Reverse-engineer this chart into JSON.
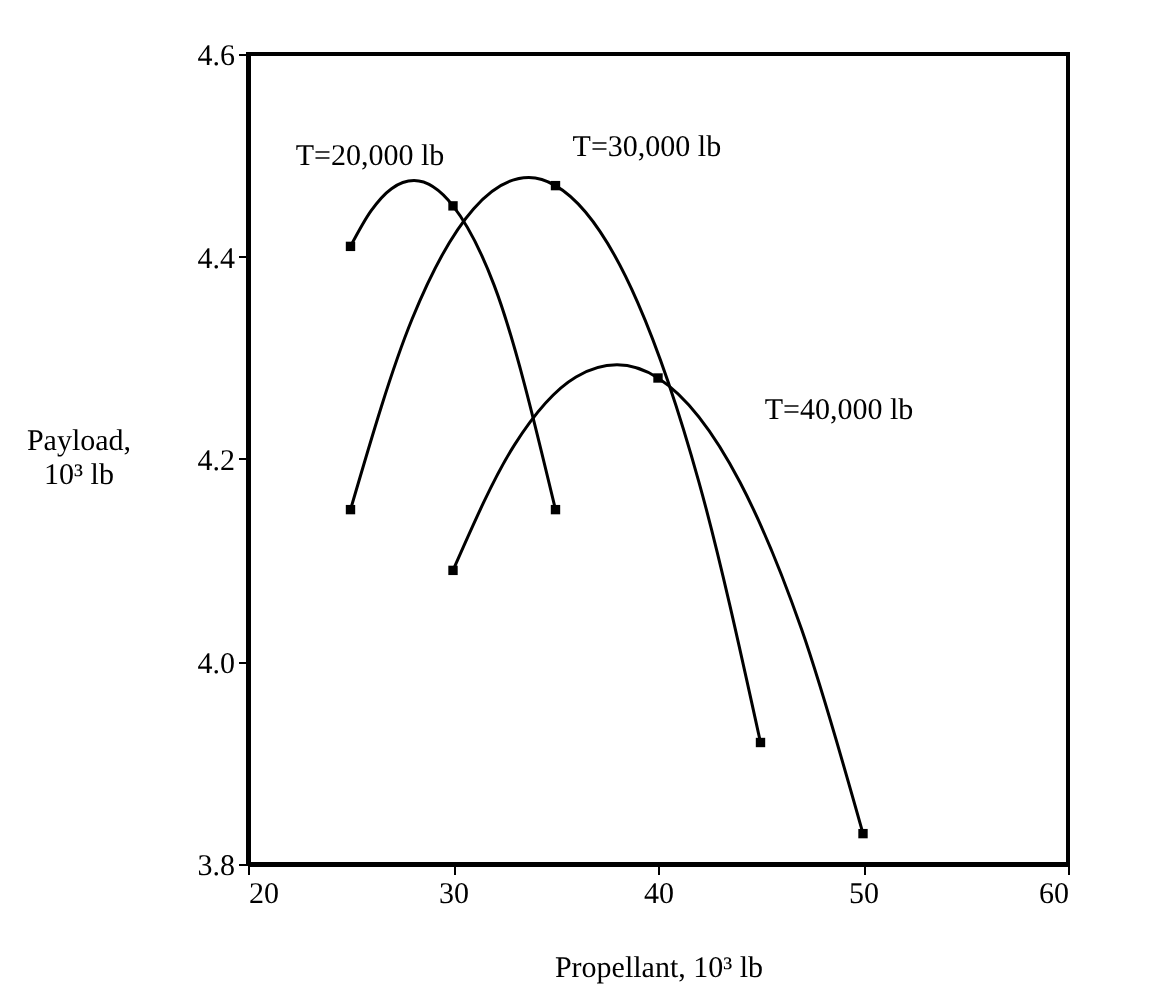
{
  "chart_data": {
    "type": "line",
    "xlabel": "Propellant, 10³ lb",
    "ylabel": "Payload,\n10³ lb",
    "xlim": [
      20,
      60
    ],
    "xticks": [
      20,
      30,
      40,
      50,
      60
    ],
    "ylim": [
      3.8,
      4.6
    ],
    "yticks": [
      3.8,
      {
        "value": 4,
        "label": "4.0"
      },
      4.2,
      4.4,
      4.6
    ],
    "grid": false,
    "line_style": "solid",
    "series": [
      {
        "name": "T=20,000 lb",
        "color": "#000000",
        "x": [
          25,
          26,
          27,
          28.1,
          30,
          32,
          35
        ],
        "values": [
          4.41,
          4.445,
          4.467,
          4.475,
          4.45,
          4.372,
          4.15
        ]
      },
      {
        "name": "T=30,000 lb",
        "color": "#000000",
        "x": [
          25,
          28,
          31,
          33.7,
          35,
          39,
          42,
          45
        ],
        "values": [
          4.15,
          4.338,
          4.447,
          4.478,
          4.47,
          4.355,
          4.177,
          3.92
        ]
      },
      {
        "name": "T=40,000 lb",
        "color": "#000000",
        "x": [
          30,
          33,
          36,
          38,
          40,
          44,
          47,
          50
        ],
        "values": [
          4.09,
          4.214,
          4.281,
          4.293,
          4.28,
          4.177,
          4.032,
          3.83
        ]
      },
      {
        "type": "scatter",
        "color": "#000000",
        "marker": "square",
        "x": [
          25,
          30,
          35
        ],
        "values": [
          4.41,
          4.45,
          4.15
        ]
      },
      {
        "type": "scatter",
        "color": "#000000",
        "marker": "square",
        "x": [
          25,
          35,
          45
        ],
        "values": [
          4.15,
          4.47,
          3.92
        ]
      },
      {
        "type": "scatter",
        "color": "#000000",
        "marker": "square",
        "x": [
          30,
          40,
          50
        ],
        "values": [
          4.09,
          4.28,
          3.83
        ]
      }
    ]
  }
}
